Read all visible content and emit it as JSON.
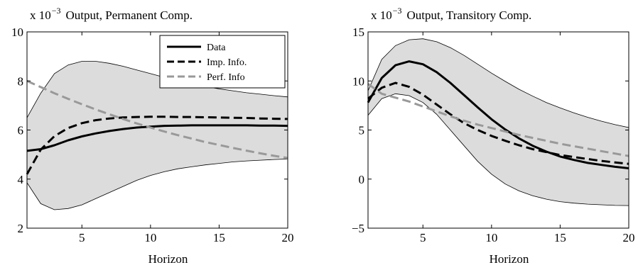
{
  "chart_data": [
    {
      "type": "line",
      "title": "Output, Permanent Comp.",
      "scale_text": "x 10",
      "scale_exp": "−3",
      "xlabel": "Horizon",
      "ylabel": "",
      "xlim": [
        1,
        20
      ],
      "ylim": [
        2,
        10
      ],
      "xticks": [
        5,
        10,
        15,
        20
      ],
      "yticks": [
        2,
        4,
        6,
        8,
        10
      ],
      "grid": false,
      "legend": "top-right",
      "x": [
        1,
        2,
        3,
        4,
        5,
        6,
        7,
        8,
        9,
        10,
        11,
        12,
        13,
        14,
        15,
        16,
        17,
        18,
        19,
        20
      ],
      "band": {
        "lower": [
          3.85,
          3.0,
          2.75,
          2.8,
          2.95,
          3.2,
          3.45,
          3.7,
          3.95,
          4.15,
          4.3,
          4.42,
          4.5,
          4.58,
          4.64,
          4.7,
          4.74,
          4.77,
          4.8,
          4.82
        ],
        "upper": [
          6.5,
          7.5,
          8.3,
          8.65,
          8.8,
          8.8,
          8.72,
          8.6,
          8.45,
          8.3,
          8.15,
          8.0,
          7.88,
          7.77,
          7.68,
          7.6,
          7.52,
          7.46,
          7.4,
          7.35
        ]
      },
      "series": [
        {
          "name": "Data",
          "color": "#000000",
          "dash": "solid",
          "values": [
            5.15,
            5.22,
            5.38,
            5.58,
            5.74,
            5.86,
            5.96,
            6.04,
            6.1,
            6.14,
            6.17,
            6.18,
            6.19,
            6.19,
            6.19,
            6.19,
            6.19,
            6.18,
            6.18,
            6.17
          ]
        },
        {
          "name": "Imp. Info.",
          "color": "#000000",
          "dash": "dashed",
          "values": [
            4.2,
            5.2,
            5.75,
            6.08,
            6.28,
            6.4,
            6.47,
            6.51,
            6.53,
            6.54,
            6.54,
            6.53,
            6.53,
            6.52,
            6.51,
            6.5,
            6.49,
            6.47,
            6.46,
            6.45
          ]
        },
        {
          "name": "Perf. Info",
          "color": "#999999",
          "dash": "dashed",
          "values": [
            8.0,
            7.75,
            7.5,
            7.27,
            7.05,
            6.84,
            6.64,
            6.45,
            6.27,
            6.1,
            5.94,
            5.79,
            5.65,
            5.51,
            5.39,
            5.27,
            5.16,
            5.05,
            4.95,
            4.86
          ]
        }
      ]
    },
    {
      "type": "line",
      "title": "Output, Transitory Comp.",
      "scale_text": "x 10",
      "scale_exp": "−3",
      "xlabel": "Horizon",
      "ylabel": "",
      "xlim": [
        1,
        20
      ],
      "ylim": [
        -5,
        15
      ],
      "xticks": [
        5,
        10,
        15,
        20
      ],
      "yticks": [
        -5,
        0,
        5,
        10,
        15
      ],
      "grid": false,
      "legend": "",
      "x": [
        1,
        2,
        3,
        4,
        5,
        6,
        7,
        8,
        9,
        10,
        11,
        12,
        13,
        14,
        15,
        16,
        17,
        18,
        19,
        20
      ],
      "band": {
        "lower": [
          6.5,
          8.2,
          8.7,
          8.5,
          7.8,
          6.6,
          5.0,
          3.4,
          1.8,
          0.5,
          -0.5,
          -1.2,
          -1.7,
          -2.05,
          -2.3,
          -2.45,
          -2.55,
          -2.62,
          -2.68,
          -2.7
        ],
        "upper": [
          9.0,
          12.2,
          13.6,
          14.2,
          14.3,
          14.0,
          13.4,
          12.6,
          11.7,
          10.8,
          9.95,
          9.15,
          8.45,
          7.8,
          7.25,
          6.75,
          6.3,
          5.9,
          5.55,
          5.25
        ]
      },
      "series": [
        {
          "name": "Data",
          "color": "#000000",
          "dash": "solid",
          "values": [
            7.8,
            10.3,
            11.6,
            12.0,
            11.7,
            10.9,
            9.8,
            8.55,
            7.3,
            6.1,
            5.05,
            4.15,
            3.4,
            2.8,
            2.3,
            1.95,
            1.65,
            1.45,
            1.25,
            1.1
          ]
        },
        {
          "name": "Imp. Info.",
          "color": "#000000",
          "dash": "dashed",
          "values": [
            8.2,
            9.3,
            9.8,
            9.4,
            8.6,
            7.6,
            6.6,
            5.7,
            5.0,
            4.4,
            3.9,
            3.45,
            3.05,
            2.75,
            2.45,
            2.25,
            2.05,
            1.85,
            1.7,
            1.55
          ]
        },
        {
          "name": "Perf. Info",
          "color": "#999999",
          "dash": "dashed",
          "values": [
            9.7,
            8.7,
            8.3,
            7.9,
            7.4,
            6.9,
            6.4,
            5.95,
            5.55,
            5.2,
            4.85,
            4.5,
            4.2,
            3.9,
            3.6,
            3.35,
            3.1,
            2.85,
            2.6,
            2.35
          ]
        }
      ]
    }
  ]
}
